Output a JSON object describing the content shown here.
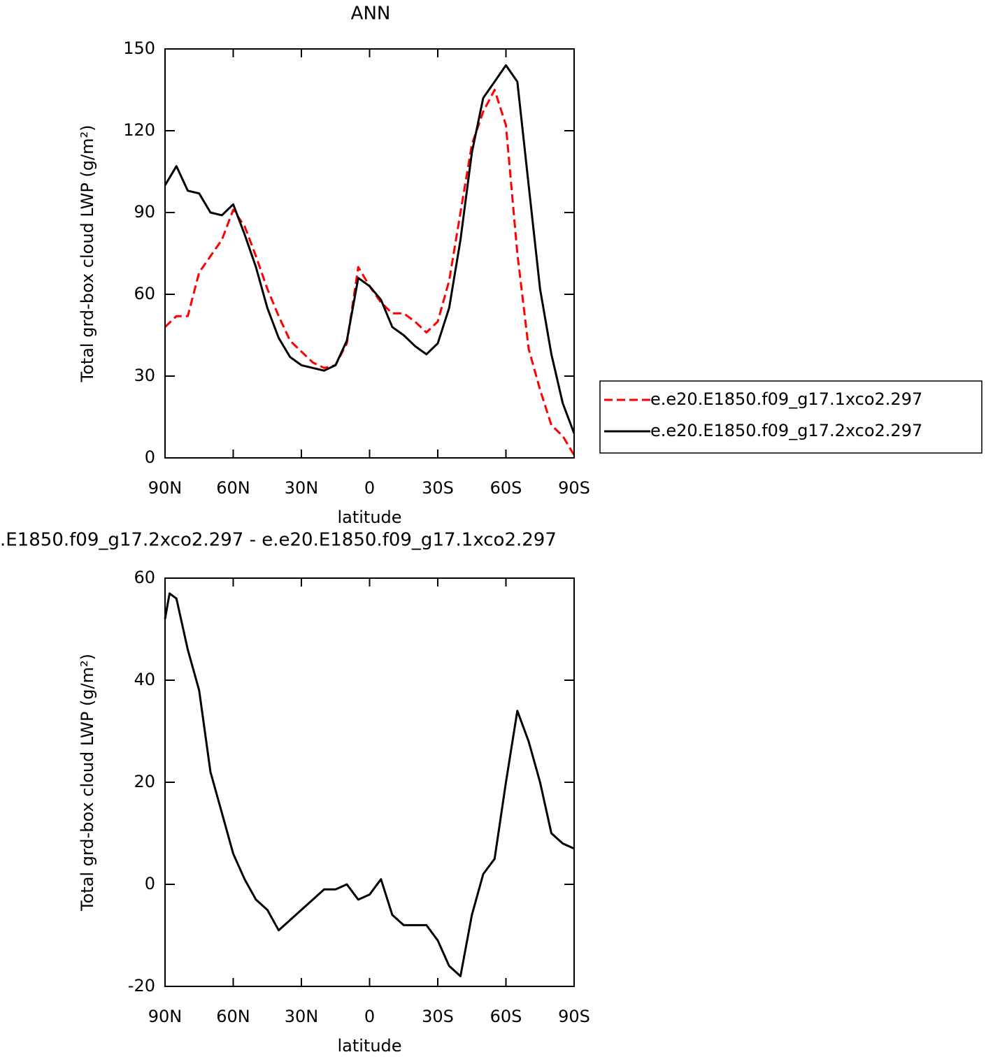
{
  "chart_data": [
    {
      "type": "line",
      "title": "ANN",
      "xlabel": "latitude",
      "ylabel": "Total grd-box cloud LWP (g/m²)",
      "x": [
        90,
        85,
        80,
        75,
        70,
        65,
        60,
        55,
        50,
        45,
        40,
        35,
        30,
        25,
        20,
        15,
        10,
        5,
        0,
        -5,
        -10,
        -15,
        -20,
        -25,
        -30,
        -35,
        -40,
        -45,
        -50,
        -55,
        -60,
        -65,
        -70,
        -75,
        -80,
        -85,
        -90
      ],
      "series": [
        {
          "name": "e.e20.E1850.f09_g17.1xco2.297",
          "color": "#ff0000",
          "dash": true,
          "values": [
            48,
            52,
            52,
            68,
            74,
            80,
            91,
            85,
            74,
            62,
            52,
            43,
            39,
            35,
            33,
            34,
            42,
            70,
            63,
            57,
            53,
            53,
            50,
            46,
            50,
            65,
            90,
            115,
            127,
            135,
            122,
            75,
            40,
            25,
            12,
            8,
            1
          ]
        },
        {
          "name": "e.e20.E1850.f09_g17.2xco2.297",
          "color": "#000000",
          "dash": false,
          "values": [
            100,
            107,
            98,
            97,
            90,
            89,
            93,
            82,
            70,
            55,
            44,
            37,
            34,
            33,
            32,
            34,
            43,
            66,
            63,
            58,
            48,
            45,
            41,
            38,
            42,
            55,
            80,
            112,
            132,
            138,
            144,
            138,
            100,
            62,
            38,
            20,
            9
          ]
        }
      ],
      "xlim": [
        90,
        -90
      ],
      "ylim": [
        0,
        150
      ],
      "xticks": [
        {
          "value": 90,
          "label": "90N"
        },
        {
          "value": 60,
          "label": "60N"
        },
        {
          "value": 30,
          "label": "30N"
        },
        0,
        {
          "value": -30,
          "label": "30S"
        },
        {
          "value": -60,
          "label": "60S"
        },
        {
          "value": -90,
          "label": "90S"
        }
      ],
      "yticks": [
        0,
        30,
        60,
        90,
        120,
        150
      ],
      "legend": "right"
    },
    {
      "type": "line",
      "title": ".E1850.f09_g17.2xco2.297 - e.e20.E1850.f09_g17.1xco2.297",
      "xlabel": "latitude",
      "ylabel": "Total grd-box cloud LWP (g/m²)",
      "x": [
        90,
        88,
        85,
        80,
        75,
        70,
        65,
        60,
        55,
        50,
        45,
        40,
        35,
        30,
        25,
        20,
        15,
        10,
        5,
        0,
        -5,
        -10,
        -15,
        -20,
        -25,
        -30,
        -35,
        -40,
        -45,
        -50,
        -55,
        -60,
        -65,
        -70,
        -75,
        -80,
        -85,
        -90
      ],
      "series": [
        {
          "color": "#000000",
          "dash": false,
          "values": [
            52,
            57,
            56,
            46,
            38,
            22,
            14,
            6,
            1,
            -3,
            -5,
            -9,
            -7,
            -5,
            -3,
            -1,
            -1,
            0,
            -3,
            -2,
            1,
            -6,
            -8,
            -8,
            -8,
            -11,
            -16,
            -18,
            -6,
            2,
            5,
            20,
            34,
            28,
            20,
            10,
            8,
            7
          ]
        }
      ],
      "xlim": [
        90,
        -90
      ],
      "ylim": [
        -20,
        60
      ],
      "xticks": [
        {
          "value": 90,
          "label": "90N"
        },
        {
          "value": 60,
          "label": "60N"
        },
        {
          "value": 30,
          "label": "30N"
        },
        0,
        {
          "value": -30,
          "label": "30S"
        },
        {
          "value": -60,
          "label": "60S"
        },
        {
          "value": -90,
          "label": "90S"
        }
      ],
      "yticks": [
        -20,
        0,
        20,
        40,
        60
      ]
    }
  ]
}
